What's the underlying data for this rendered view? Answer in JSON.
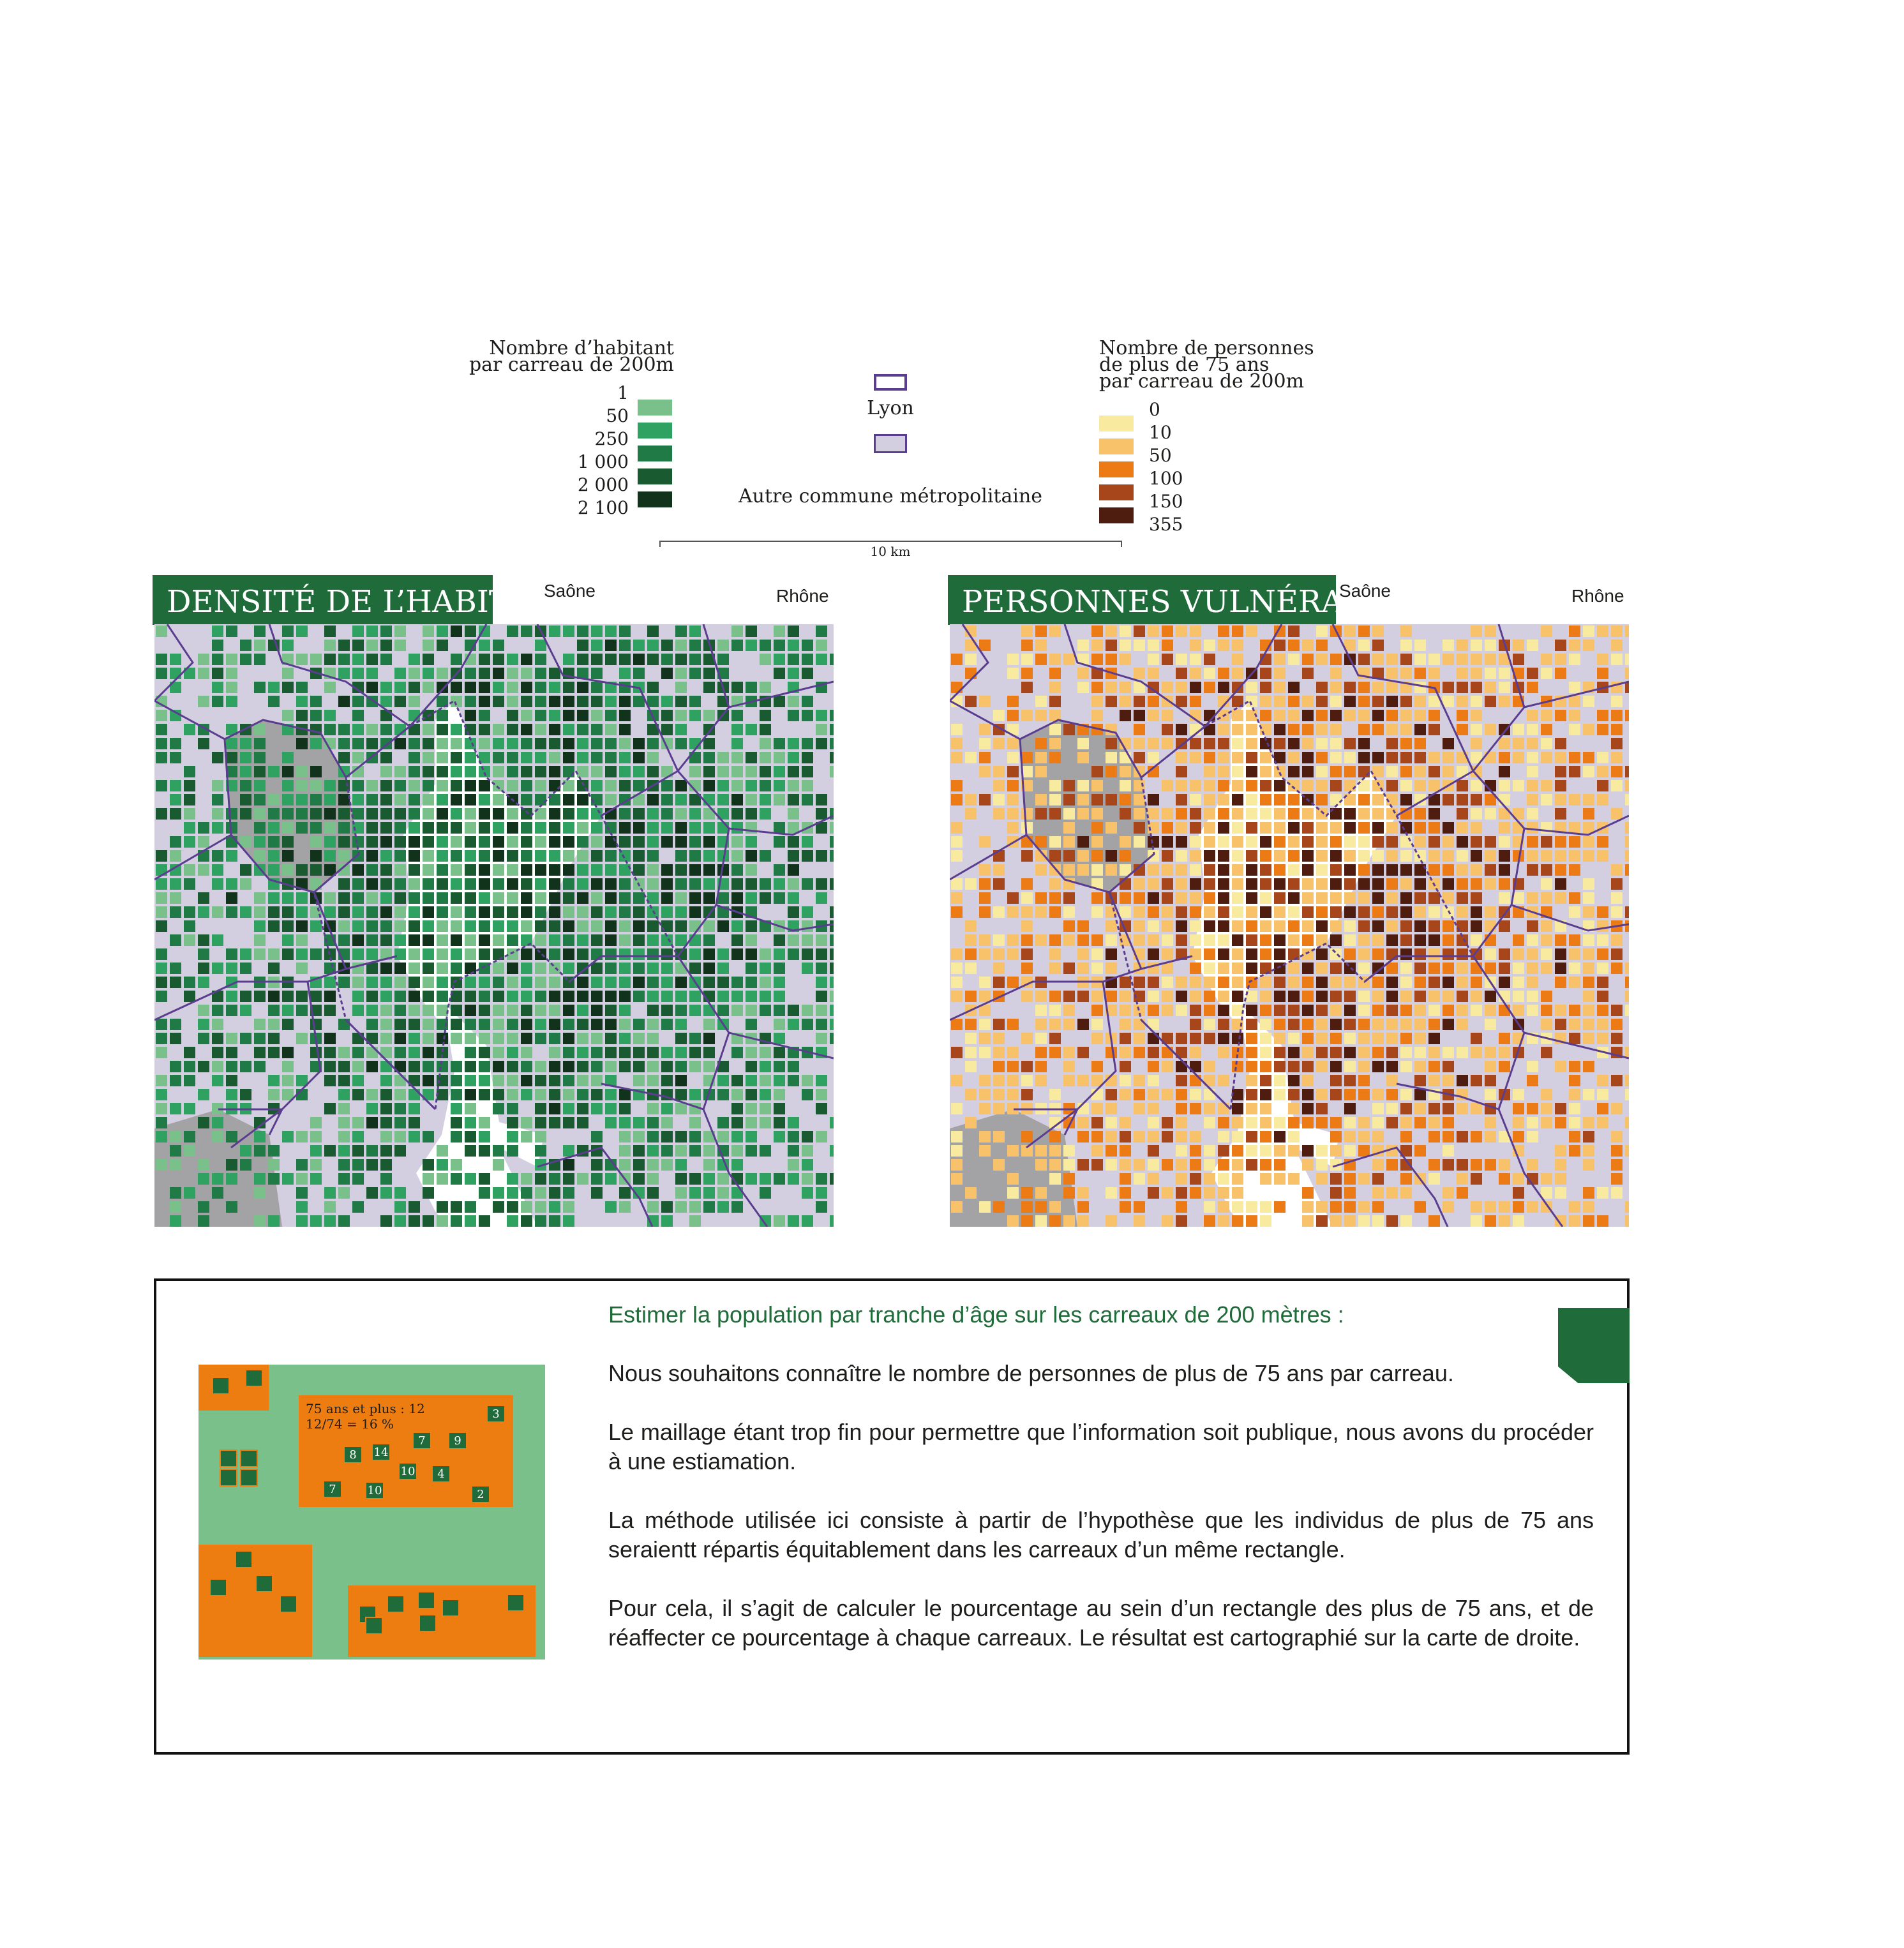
{
  "legend_population": {
    "title_line1": "Nombre d’habitant",
    "title_line2": "par carreau de  200m",
    "classes": [
      "1",
      "50",
      "250",
      "1 000",
      "2 000",
      "2 100"
    ],
    "colors": [
      "#79c08b",
      "#2fa262",
      "#1f7a45",
      "#195a30",
      "#11331c"
    ]
  },
  "legend_boundaries": {
    "lyon_label": "Lyon",
    "other_label": "Autre commune métropolitaine",
    "scale_label": "10 km"
  },
  "legend_elderly": {
    "title_line1": "Nombre de personnes",
    "title_line2": "de plus de 75 ans",
    "title_line3": "par carreau de 200m",
    "classes": [
      "0",
      "10",
      "50",
      "100",
      "150",
      "355"
    ],
    "colors": [
      "#f8ea9e",
      "#f8c26b",
      "#ec7a15",
      "#a8461b",
      "#4f1d10"
    ]
  },
  "map_left": {
    "title": "DENSITÉ DE L’HABIT",
    "label_saone": "Saône",
    "label_rhone": "Rhône"
  },
  "map_right": {
    "title": "PERSONNES VULNÉRAB",
    "label_saone": "Saône",
    "label_rhone": "Rhône"
  },
  "info": {
    "heading": "Estimer la population par tranche d’âge sur les carreaux de 200 mètres :",
    "p1": "Nous souhaitons connaître le nombre de personnes de plus de 75 ans par carreau.",
    "p2": "Le maillage étant trop fin pour permettre que l’information soit publique, nous avons du procéder à une estiamation.",
    "p3": "La méthode utilisée ici consiste à partir de l’hypothèse que les individus de plus de 75 ans seraientt répartis équitablement dans les carreaux d’un même rectangle.",
    "p4": "Pour cela, il s’agit de calculer le pourcentage au sein d’un rectangle des plus de 75 ans, et de réaffecter ce pourcentage à chaque carreaux. Le résultat est cartographié sur la carte de droite."
  },
  "diagram": {
    "line1": "75 ans et plus : 12",
    "line2": "12/74 = 16 %",
    "numbers": [
      "3",
      "8",
      "14",
      "7",
      "9",
      "7",
      "10",
      "10",
      "4",
      "2"
    ]
  }
}
